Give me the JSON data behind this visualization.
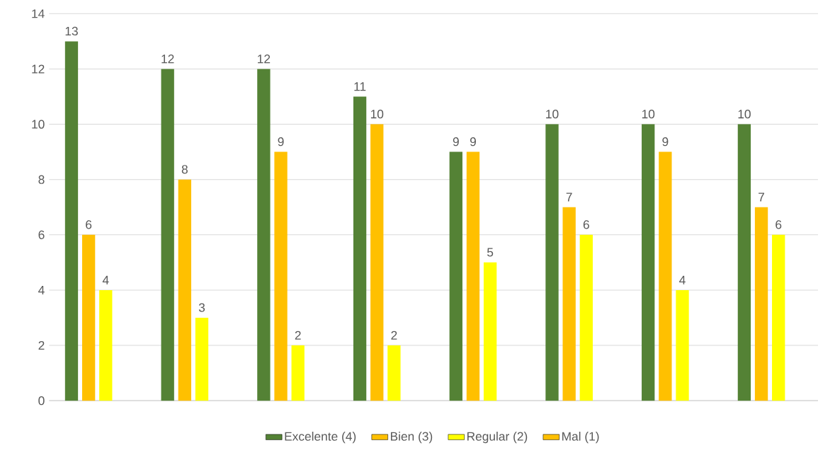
{
  "chart_data": {
    "type": "bar",
    "categories": [
      null,
      null,
      null,
      null,
      null,
      null,
      null,
      null
    ],
    "series": [
      {
        "name": "Excelente (4)",
        "color": "#548235",
        "values": [
          13,
          12,
          12,
          11,
          9,
          10,
          10,
          10
        ]
      },
      {
        "name": "Bien (3)",
        "color": "#ffc000",
        "values": [
          6,
          8,
          9,
          10,
          9,
          7,
          9,
          7
        ]
      },
      {
        "name": "Regular (2)",
        "color": "#ffff00",
        "values": [
          4,
          3,
          2,
          2,
          5,
          6,
          4,
          6
        ]
      },
      {
        "name": "Mal (1)",
        "color": "#ffc000",
        "values": [
          null,
          null,
          null,
          null,
          null,
          null,
          null,
          null
        ]
      }
    ],
    "ylim": [
      0,
      14
    ],
    "yticks": [
      0,
      2,
      4,
      6,
      8,
      10,
      12,
      14
    ],
    "grid": "y",
    "legend": "bottom",
    "data_labels": true
  }
}
